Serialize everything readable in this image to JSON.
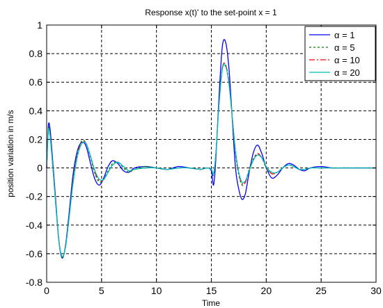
{
  "chart_data": {
    "type": "line",
    "title": "Response x(t)' to the set-point x = 1",
    "xlabel": "Time",
    "ylabel": "position variation in m/s",
    "xlim": [
      0,
      30
    ],
    "ylim": [
      -0.8,
      1
    ],
    "xticks": [
      "0",
      "5",
      "10",
      "15",
      "20",
      "25",
      "30"
    ],
    "yticks": [
      "1",
      "0.8",
      "0.6",
      "0.4",
      "0.2",
      "0",
      "-0.2",
      "-0.4",
      "-0.6",
      "-0.8"
    ],
    "grid": true,
    "legend_position": "top-right",
    "series": [
      {
        "name": "α = 1",
        "color": "#0000ff",
        "dash": "solid",
        "x": [
          0,
          0.15,
          0.3,
          0.5,
          0.8,
          1.1,
          1.4,
          1.7,
          2.0,
          2.4,
          2.8,
          3.2,
          3.6,
          4.0,
          4.4,
          4.8,
          5.2,
          5.6,
          6.0,
          6.5,
          7.0,
          7.5,
          8.0,
          9.0,
          10.0,
          11.0,
          12.0,
          13.0,
          14.0,
          14.6,
          15.0,
          15.2,
          15.4,
          15.7,
          16.0,
          16.3,
          16.6,
          16.9,
          17.2,
          17.5,
          17.8,
          18.1,
          18.4,
          18.8,
          19.2,
          19.6,
          20.0,
          20.5,
          21.0,
          21.5,
          22.0,
          22.5,
          23.0,
          23.5,
          24.0,
          25.0,
          26.0,
          27.0,
          28.0,
          30.0
        ],
        "y": [
          0.0,
          0.29,
          0.28,
          0.1,
          -0.2,
          -0.5,
          -0.63,
          -0.55,
          -0.35,
          -0.05,
          0.12,
          0.18,
          0.15,
          0.03,
          -0.08,
          -0.12,
          -0.07,
          0.01,
          0.05,
          0.03,
          -0.02,
          -0.03,
          0.0,
          0.01,
          0.0,
          -0.01,
          0.01,
          0.0,
          -0.01,
          0.0,
          -0.02,
          -0.12,
          0.05,
          0.5,
          0.85,
          0.88,
          0.7,
          0.35,
          0.0,
          -0.15,
          -0.22,
          -0.18,
          -0.05,
          0.1,
          0.16,
          0.1,
          0.0,
          -0.07,
          -0.05,
          0.0,
          0.03,
          0.02,
          -0.01,
          -0.02,
          0.0,
          0.01,
          0.0,
          0.0,
          0.0,
          0.0
        ]
      },
      {
        "name": "α = 5",
        "color": "#008000",
        "dash": "dotted",
        "x": [
          0,
          0.15,
          0.3,
          0.5,
          0.8,
          1.1,
          1.4,
          1.7,
          2.0,
          2.4,
          2.8,
          3.2,
          3.6,
          4.0,
          4.4,
          4.8,
          5.2,
          5.6,
          6.0,
          6.5,
          7.0,
          7.5,
          8.0,
          9.0,
          10.0,
          11.0,
          12.0,
          13.0,
          14.0,
          14.6,
          15.0,
          15.2,
          15.4,
          15.7,
          16.0,
          16.3,
          16.6,
          16.9,
          17.2,
          17.5,
          17.8,
          18.1,
          18.4,
          18.8,
          19.2,
          19.6,
          20.0,
          20.5,
          21.0,
          21.5,
          22.0,
          22.5,
          23.0,
          23.5,
          24.0,
          25.0,
          26.0,
          27.0,
          28.0,
          30.0
        ],
        "y": [
          0.0,
          0.27,
          0.25,
          0.08,
          -0.22,
          -0.5,
          -0.63,
          -0.56,
          -0.37,
          -0.08,
          0.1,
          0.19,
          0.17,
          0.07,
          -0.04,
          -0.1,
          -0.08,
          -0.02,
          0.03,
          0.04,
          0.0,
          -0.03,
          -0.01,
          0.01,
          0.0,
          -0.01,
          0.0,
          0.0,
          -0.01,
          0.0,
          -0.01,
          -0.05,
          0.08,
          0.45,
          0.7,
          0.72,
          0.6,
          0.35,
          0.1,
          -0.05,
          -0.12,
          -0.1,
          -0.02,
          0.06,
          0.1,
          0.07,
          0.0,
          -0.04,
          -0.03,
          0.0,
          0.02,
          0.01,
          -0.01,
          -0.01,
          0.0,
          0.0,
          0.0,
          0.0,
          0.0,
          0.0
        ]
      },
      {
        "name": "α = 10",
        "color": "#ff0000",
        "dash": "dashdot",
        "x": [
          0,
          0.15,
          0.3,
          0.5,
          0.8,
          1.1,
          1.4,
          1.7,
          2.0,
          2.4,
          2.8,
          3.2,
          3.6,
          4.0,
          4.4,
          4.8,
          5.2,
          5.6,
          6.0,
          6.5,
          7.0,
          7.5,
          8.0,
          9.0,
          10.0,
          11.0,
          12.0,
          13.0,
          14.0,
          14.6,
          15.0,
          15.2,
          15.4,
          15.7,
          16.0,
          16.3,
          16.6,
          16.9,
          17.2,
          17.5,
          17.8,
          18.1,
          18.4,
          18.8,
          19.2,
          19.6,
          20.0,
          20.5,
          21.0,
          21.5,
          22.0,
          22.5,
          23.0,
          23.5,
          24.0,
          25.0,
          26.0,
          27.0,
          28.0,
          30.0
        ],
        "y": [
          0.0,
          0.26,
          0.24,
          0.07,
          -0.22,
          -0.5,
          -0.62,
          -0.56,
          -0.38,
          -0.1,
          0.09,
          0.18,
          0.17,
          0.08,
          -0.03,
          -0.09,
          -0.08,
          -0.03,
          0.02,
          0.04,
          0.01,
          -0.02,
          -0.01,
          0.0,
          0.0,
          -0.01,
          0.0,
          0.0,
          -0.01,
          0.0,
          -0.01,
          -0.04,
          0.09,
          0.45,
          0.7,
          0.72,
          0.6,
          0.36,
          0.11,
          -0.04,
          -0.11,
          -0.1,
          -0.03,
          0.05,
          0.1,
          0.07,
          0.01,
          -0.04,
          -0.03,
          0.0,
          0.02,
          0.01,
          -0.01,
          -0.01,
          0.0,
          0.0,
          0.0,
          0.0,
          0.0,
          0.0
        ]
      },
      {
        "name": "α = 20",
        "color": "#00bfbf",
        "dash": "solid",
        "x": [
          0,
          0.15,
          0.3,
          0.5,
          0.8,
          1.1,
          1.4,
          1.7,
          2.0,
          2.4,
          2.8,
          3.2,
          3.6,
          4.0,
          4.4,
          4.8,
          5.2,
          5.6,
          6.0,
          6.5,
          7.0,
          7.5,
          8.0,
          9.0,
          10.0,
          11.0,
          12.0,
          13.0,
          14.0,
          14.6,
          15.0,
          15.2,
          15.4,
          15.7,
          16.0,
          16.3,
          16.6,
          16.9,
          17.2,
          17.5,
          17.8,
          18.1,
          18.4,
          18.8,
          19.2,
          19.6,
          20.0,
          20.5,
          21.0,
          21.5,
          22.0,
          22.5,
          23.0,
          23.5,
          24.0,
          25.0,
          26.0,
          27.0,
          28.0,
          30.0
        ],
        "y": [
          0.0,
          0.26,
          0.23,
          0.06,
          -0.23,
          -0.5,
          -0.62,
          -0.56,
          -0.38,
          -0.11,
          0.08,
          0.17,
          0.17,
          0.08,
          -0.02,
          -0.08,
          -0.08,
          -0.03,
          0.02,
          0.04,
          0.01,
          -0.02,
          -0.01,
          0.0,
          0.0,
          -0.01,
          0.0,
          0.0,
          -0.01,
          0.0,
          -0.01,
          -0.04,
          0.09,
          0.44,
          0.69,
          0.71,
          0.59,
          0.36,
          0.12,
          -0.03,
          -0.1,
          -0.09,
          -0.03,
          0.05,
          0.09,
          0.07,
          0.01,
          -0.03,
          -0.03,
          0.0,
          0.02,
          0.01,
          -0.01,
          -0.01,
          0.0,
          0.0,
          0.0,
          0.0,
          0.0,
          0.0
        ]
      }
    ]
  }
}
